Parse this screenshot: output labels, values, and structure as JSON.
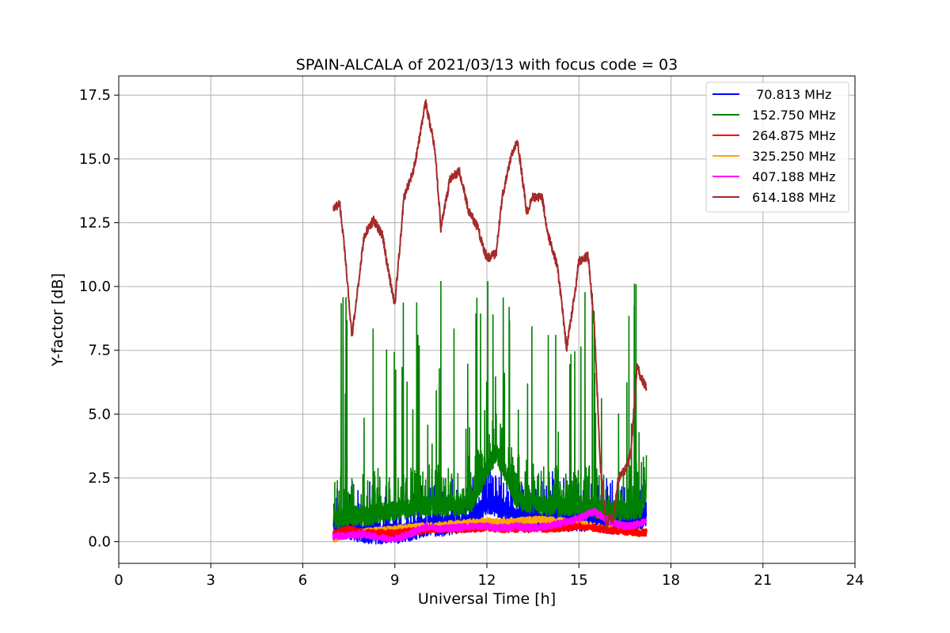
{
  "chart_data": {
    "type": "line",
    "title": "SPAIN-ALCALA of 2021/03/13 with focus code = 03",
    "xlabel": "Universal Time [h]",
    "ylabel": "Y-factor [dB]",
    "xlim": [
      0,
      24
    ],
    "ylim": [
      -0.85,
      18.25
    ],
    "xticks": [
      0,
      3,
      6,
      9,
      12,
      15,
      18,
      21,
      24
    ],
    "xtick_labels": [
      "0",
      "3",
      "6",
      "9",
      "12",
      "15",
      "18",
      "21",
      "24"
    ],
    "yticks": [
      0,
      2.5,
      5,
      7.5,
      10,
      12.5,
      15,
      17.5
    ],
    "ytick_labels": [
      "0.0",
      "2.5",
      "5.0",
      "7.5",
      "10.0",
      "12.5",
      "15.0",
      "17.5"
    ],
    "grid": true,
    "legend_position": "top-right",
    "series": [
      {
        "name": " 70.813 MHz",
        "color": "#0000ff",
        "style": "noisy",
        "x": [
          7.0,
          7.5,
          8.0,
          8.5,
          9.0,
          9.5,
          10.0,
          10.5,
          11.0,
          11.5,
          12.0,
          12.5,
          13.0,
          13.5,
          14.0,
          14.5,
          15.0,
          15.5,
          16.0,
          16.5,
          17.0,
          17.2
        ],
        "y": [
          0.6,
          0.5,
          0.3,
          0.3,
          0.3,
          0.4,
          0.6,
          0.6,
          0.7,
          0.8,
          1.5,
          1.3,
          0.9,
          0.9,
          0.9,
          0.8,
          0.8,
          0.8,
          0.7,
          0.7,
          0.8,
          1.0
        ],
        "spike_max": 2.6
      },
      {
        "name": "152.750 MHz",
        "color": "#008000",
        "style": "noisy",
        "x": [
          7.0,
          7.5,
          8.0,
          8.5,
          9.0,
          9.5,
          10.0,
          10.5,
          11.0,
          11.5,
          12.0,
          12.3,
          12.5,
          13.0,
          13.5,
          14.0,
          14.5,
          15.0,
          15.5,
          16.0,
          16.5,
          17.0,
          17.2
        ],
        "y": [
          0.8,
          1.0,
          1.0,
          1.1,
          1.2,
          1.3,
          1.4,
          1.4,
          1.4,
          1.5,
          2.8,
          3.5,
          3.0,
          1.6,
          1.5,
          1.4,
          1.4,
          1.4,
          1.3,
          1.2,
          1.2,
          1.3,
          2.0
        ],
        "spike_max": 10.7
      },
      {
        "name": "264.875 MHz",
        "color": "#ff0000",
        "style": "band",
        "x": [
          7.0,
          7.5,
          8.0,
          8.5,
          9.0,
          9.5,
          10.0,
          10.5,
          11.0,
          11.5,
          12.0,
          12.5,
          13.0,
          13.5,
          14.0,
          14.5,
          15.0,
          15.5,
          16.0,
          16.5,
          17.0,
          17.2
        ],
        "y": [
          0.3,
          0.5,
          0.35,
          0.35,
          0.35,
          0.4,
          0.45,
          0.5,
          0.5,
          0.5,
          0.55,
          0.5,
          0.5,
          0.5,
          0.5,
          0.55,
          0.6,
          0.55,
          0.45,
          0.4,
          0.35,
          0.35
        ]
      },
      {
        "name": "325.250 MHz",
        "color": "#ffa500",
        "style": "band",
        "x": [
          7.0,
          7.5,
          8.0,
          8.5,
          9.0,
          9.5,
          10.0,
          10.5,
          11.0,
          11.5,
          12.0,
          12.5,
          13.0,
          13.5,
          14.0,
          14.5,
          15.0,
          15.5,
          16.0,
          16.5,
          17.0,
          17.2
        ],
        "y": [
          0.1,
          0.3,
          0.4,
          0.45,
          0.5,
          0.55,
          0.6,
          0.65,
          0.7,
          0.75,
          0.8,
          0.75,
          0.8,
          0.85,
          0.85,
          0.8,
          0.7,
          0.6,
          0.5,
          0.4,
          0.35,
          0.4
        ]
      },
      {
        "name": "407.188 MHz",
        "color": "#ff00ff",
        "style": "band",
        "x": [
          7.0,
          7.5,
          8.0,
          8.5,
          9.0,
          9.5,
          10.0,
          10.5,
          11.0,
          11.5,
          12.0,
          12.5,
          13.0,
          13.5,
          14.0,
          14.5,
          15.0,
          15.5,
          16.0,
          16.5,
          17.0,
          17.2
        ],
        "y": [
          0.2,
          0.25,
          0.3,
          0.15,
          0.1,
          0.3,
          0.6,
          0.5,
          0.55,
          0.6,
          0.6,
          0.55,
          0.6,
          0.55,
          0.6,
          0.75,
          0.9,
          1.2,
          0.8,
          0.6,
          0.7,
          0.8
        ]
      },
      {
        "name": "614.188 MHz",
        "color": "#a52a2a",
        "style": "line",
        "x": [
          7.0,
          7.2,
          7.4,
          7.6,
          7.8,
          8.0,
          8.3,
          8.6,
          8.8,
          9.0,
          9.3,
          9.6,
          9.8,
          10.0,
          10.3,
          10.5,
          10.8,
          11.1,
          11.4,
          11.7,
          12.0,
          12.3,
          12.5,
          12.8,
          13.0,
          13.3,
          13.5,
          13.8,
          14.0,
          14.3,
          14.6,
          14.9,
          15.0,
          15.3,
          15.5,
          15.7,
          15.9,
          16.0,
          16.1,
          16.3,
          16.5,
          16.7,
          16.9,
          17.0,
          17.2
        ],
        "y": [
          13.0,
          13.3,
          11.0,
          8.0,
          10.0,
          12.0,
          12.6,
          12.0,
          10.5,
          9.3,
          13.5,
          14.5,
          15.8,
          17.2,
          15.5,
          12.3,
          14.2,
          14.5,
          13.0,
          12.3,
          11.1,
          11.3,
          13.5,
          15.2,
          15.7,
          12.9,
          13.5,
          13.5,
          12.0,
          10.8,
          7.6,
          10.0,
          11.0,
          11.2,
          8.5,
          3.0,
          0.5,
          1.0,
          0.8,
          2.5,
          2.8,
          3.5,
          7.0,
          6.5,
          6.0
        ]
      }
    ]
  }
}
